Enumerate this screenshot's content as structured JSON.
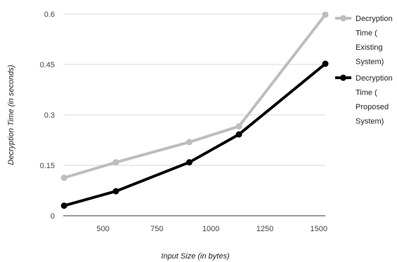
{
  "chart_data": {
    "type": "line",
    "title": "",
    "xlabel": "Input Size (in bytes)",
    "ylabel": "Decryption Time (in seconds)",
    "xlim": [
      316,
      1530
    ],
    "ylim": [
      0,
      0.6
    ],
    "x_ticks": [
      500,
      750,
      1000,
      1250,
      1500
    ],
    "x_tick_labels": [
      "500",
      "750",
      "1000",
      "1250",
      "1500"
    ],
    "y_ticks": [
      0,
      0.15,
      0.3,
      0.45,
      0.6
    ],
    "y_tick_labels": [
      "0",
      "0.15",
      "0.3",
      "0.45",
      "0.6"
    ],
    "grid": true,
    "legend_position": "right",
    "series": [
      {
        "name_lines": [
          "Decryption",
          "Time (",
          "Existing",
          "System)"
        ],
        "color": "#bdbdbd",
        "x": [
          320,
          560,
          900,
          1130,
          1530
        ],
        "y": [
          0.113,
          0.159,
          0.219,
          0.266,
          0.598
        ]
      },
      {
        "name_lines": [
          "Decryption",
          "Time (",
          "Proposed",
          "System)"
        ],
        "color": "#000000",
        "x": [
          320,
          560,
          900,
          1130,
          1530
        ],
        "y": [
          0.03,
          0.073,
          0.159,
          0.242,
          0.452
        ]
      }
    ]
  }
}
